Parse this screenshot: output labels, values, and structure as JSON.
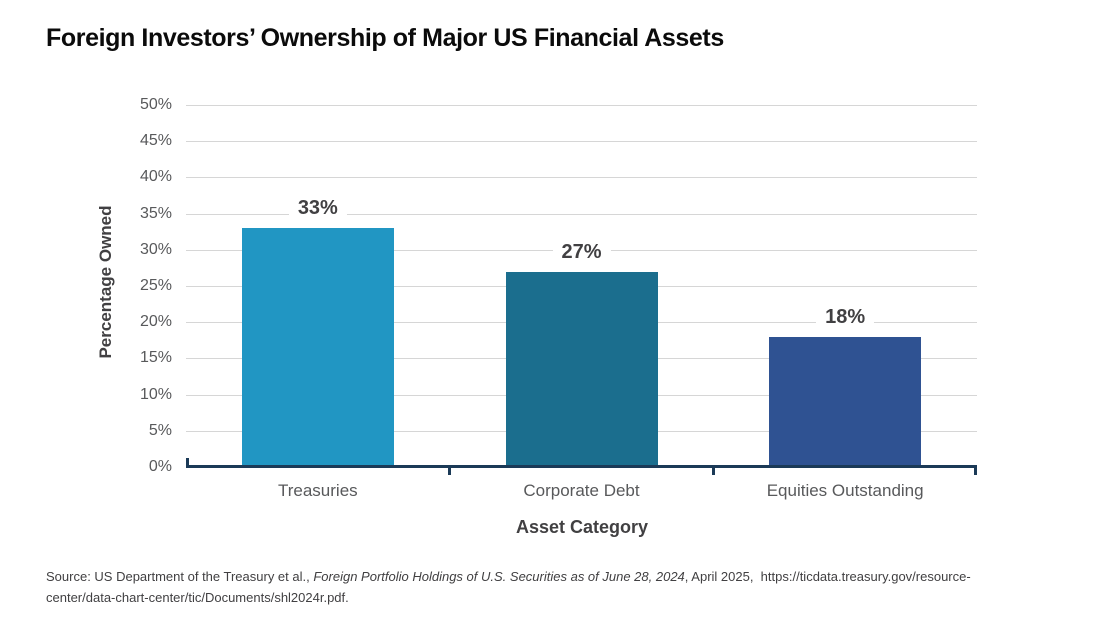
{
  "chart_data": {
    "type": "bar",
    "title": "Foreign Investors’ Ownership of Major US Financial Assets",
    "xlabel": "Asset Category",
    "ylabel": "Percentage Owned",
    "categories": [
      "Treasuries",
      "Corporate Debt",
      "Equities Outstanding"
    ],
    "values": [
      33,
      27,
      18
    ],
    "data_labels": [
      "33%",
      "27%",
      "18%"
    ],
    "bar_colors": [
      "#2196c3",
      "#1b6e8e",
      "#2f5292"
    ],
    "ylim": [
      0,
      50
    ],
    "ytick_step": 5,
    "ytick_labels": [
      "0%",
      "5%",
      "10%",
      "15%",
      "20%",
      "25%",
      "30%",
      "35%",
      "40%",
      "45%",
      "50%"
    ],
    "grid": true,
    "legend": false
  },
  "styles": {
    "background": "#ffffff",
    "title_color": "#0b0b0b",
    "gridline_color": "#d6d6d6",
    "axis_line_color": "#1b3a57",
    "tick_label_color": "#58595b",
    "axis_title_color": "#414042",
    "data_label_color": "#414042"
  },
  "source": {
    "prefix": "Source: US Department of the Treasury et al., ",
    "italic": "Foreign Portfolio Holdings of U.S. Securities as of June 28, 2024",
    "suffix": ", April 2025,  https://ticdata.treasury.gov/resource-",
    "line2": "center/data-chart-center/tic/Documents/shl2024r.pdf."
  }
}
